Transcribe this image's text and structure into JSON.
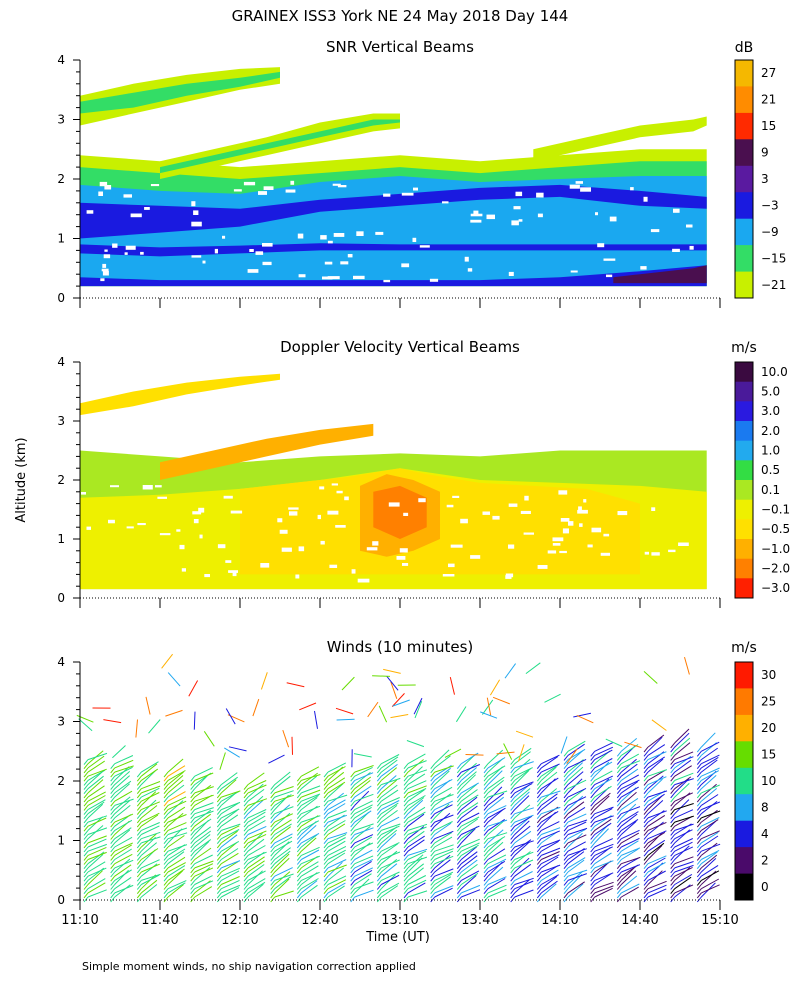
{
  "title": "GRAINEX ISS3 York NE  24 May 2018 Day 144",
  "ylabel_shared": "Altitude (km)",
  "xlabel": "Time (UT)",
  "footer": "Simple moment winds, no ship navigation correction applied",
  "x_ticks": [
    "11:10",
    "11:40",
    "12:10",
    "12:40",
    "13:10",
    "13:40",
    "14:10",
    "14:40",
    "15:10"
  ],
  "x_range_minutes": [
    670,
    910
  ],
  "chart_data": [
    {
      "type": "heatmap",
      "title": "SNR Vertical Beams",
      "ylim": [
        0,
        4
      ],
      "yticks": [
        "0",
        "1",
        "2",
        "3",
        "4"
      ],
      "colorbar_unit": "dB",
      "colorbar_labels": [
        "27",
        "21",
        "15",
        "9",
        "3",
        "−3",
        "−9",
        "−15",
        "−21"
      ],
      "colorbar_colors": [
        "#f5b800",
        "#ff8c00",
        "#ff2a00",
        "#4a0f4f",
        "#5a1aa0",
        "#1a1ae0",
        "#1aa8f0",
        "#33dd66",
        "#c8f000"
      ],
      "bands": [
        {
          "t": [
            670,
            700,
            730,
            760,
            790,
            820,
            850,
            880,
            905
          ],
          "lo": [
            0.2,
            0.2,
            0.2,
            0.2,
            0.2,
            0.2,
            0.2,
            0.2,
            0.2
          ],
          "hi": [
            2.4,
            2.3,
            2.2,
            2.3,
            2.4,
            2.3,
            2.4,
            2.5,
            2.5
          ],
          "color": "#c8f000"
        },
        {
          "t": [
            670,
            700,
            730,
            760,
            790,
            820,
            850,
            880,
            905
          ],
          "lo": [
            0.2,
            0.2,
            0.2,
            0.2,
            0.2,
            0.2,
            0.2,
            0.2,
            0.2
          ],
          "hi": [
            2.2,
            2.1,
            2.0,
            2.1,
            2.2,
            2.1,
            2.2,
            2.3,
            2.3
          ],
          "color": "#33dd66"
        },
        {
          "t": [
            670,
            700,
            730,
            760,
            790,
            820,
            850,
            880,
            905
          ],
          "lo": [
            0.2,
            0.2,
            0.2,
            0.2,
            0.2,
            0.2,
            0.2,
            0.2,
            0.2
          ],
          "hi": [
            1.9,
            1.8,
            1.75,
            1.95,
            2.05,
            1.95,
            2.0,
            2.05,
            2.05
          ],
          "color": "#1aa8f0"
        },
        {
          "t": [
            670,
            700,
            730,
            760,
            790,
            820,
            850,
            880,
            905
          ],
          "lo": [
            1.0,
            1.1,
            1.2,
            1.45,
            1.55,
            1.65,
            1.7,
            1.55,
            1.5
          ],
          "hi": [
            1.6,
            1.55,
            1.5,
            1.65,
            1.75,
            1.85,
            1.9,
            1.8,
            1.7
          ],
          "color": "#1a1ae0"
        },
        {
          "t": [
            670,
            700,
            730,
            760,
            790,
            820,
            850,
            880,
            905
          ],
          "lo": [
            0.75,
            0.7,
            0.75,
            0.8,
            0.8,
            0.8,
            0.8,
            0.8,
            0.8
          ],
          "hi": [
            0.9,
            0.85,
            0.88,
            0.92,
            0.9,
            0.9,
            0.9,
            0.9,
            0.9
          ],
          "color": "#1a1ae0"
        },
        {
          "t": [
            670,
            700,
            730,
            760,
            790,
            820,
            850,
            880,
            905
          ],
          "lo": [
            0.2,
            0.2,
            0.2,
            0.2,
            0.2,
            0.2,
            0.2,
            0.2,
            0.2
          ],
          "hi": [
            0.35,
            0.3,
            0.3,
            0.3,
            0.3,
            0.3,
            0.35,
            0.45,
            0.55
          ],
          "color": "#1a1ae0"
        },
        {
          "t": [
            870,
            880,
            890,
            900,
            905
          ],
          "lo": [
            0.25,
            0.25,
            0.25,
            0.25,
            0.25
          ],
          "hi": [
            0.35,
            0.4,
            0.45,
            0.5,
            0.55
          ],
          "color": "#4a0f4f"
        },
        {
          "t": [
            670,
            690,
            710,
            730,
            745
          ],
          "lo": [
            2.9,
            3.1,
            3.3,
            3.5,
            3.6
          ],
          "hi": [
            3.4,
            3.6,
            3.75,
            3.85,
            3.88
          ],
          "color": "#c8f000"
        },
        {
          "t": [
            670,
            690,
            710,
            730,
            745
          ],
          "lo": [
            3.1,
            3.2,
            3.4,
            3.55,
            3.7
          ],
          "hi": [
            3.3,
            3.45,
            3.6,
            3.7,
            3.8
          ],
          "color": "#33dd66"
        },
        {
          "t": [
            700,
            720,
            740,
            760,
            780,
            790
          ],
          "lo": [
            2.0,
            2.2,
            2.4,
            2.6,
            2.8,
            2.85
          ],
          "hi": [
            2.3,
            2.5,
            2.7,
            2.95,
            3.1,
            3.1
          ],
          "color": "#c8f000"
        },
        {
          "t": [
            700,
            720,
            740,
            760,
            780,
            790
          ],
          "lo": [
            2.1,
            2.3,
            2.5,
            2.7,
            2.9,
            2.95
          ],
          "hi": [
            2.2,
            2.4,
            2.6,
            2.8,
            3.0,
            3.0
          ],
          "color": "#33dd66"
        },
        {
          "t": [
            840,
            860,
            880,
            900,
            905
          ],
          "lo": [
            2.3,
            2.5,
            2.7,
            2.8,
            2.9
          ],
          "hi": [
            2.5,
            2.7,
            2.9,
            3.0,
            3.05
          ],
          "color": "#c8f000"
        }
      ]
    },
    {
      "type": "heatmap",
      "title": "Doppler Velocity Vertical Beams",
      "ylim": [
        0,
        4
      ],
      "yticks": [
        "0",
        "1",
        "2",
        "3",
        "4"
      ],
      "colorbar_unit": "m/s",
      "colorbar_labels": [
        "10.0",
        "5.0",
        "3.0",
        "2.0",
        "1.0",
        "0.5",
        "0.1",
        "−0.1",
        "−0.5",
        "−1.0",
        "−2.0",
        "−3.0"
      ],
      "colorbar_colors": [
        "#3a0a40",
        "#4a1a9a",
        "#2a1ae0",
        "#1a7af0",
        "#22aaee",
        "#33dd44",
        "#aae822",
        "#eef000",
        "#ffe000",
        "#ffb000",
        "#ff8000",
        "#ff2000"
      ],
      "bands": [
        {
          "t": [
            670,
            700,
            730,
            760,
            790,
            820,
            850,
            880,
            905
          ],
          "lo": [
            0.15,
            0.15,
            0.15,
            0.15,
            0.15,
            0.15,
            0.15,
            0.15,
            0.15
          ],
          "hi": [
            2.5,
            2.4,
            2.3,
            2.4,
            2.45,
            2.4,
            2.5,
            2.5,
            2.5
          ],
          "color": "#aae822"
        },
        {
          "t": [
            670,
            700,
            730,
            760,
            790,
            820,
            850,
            880,
            905
          ],
          "lo": [
            0.15,
            0.15,
            0.15,
            0.15,
            0.15,
            0.15,
            0.15,
            0.15,
            0.15
          ],
          "hi": [
            1.7,
            1.75,
            1.85,
            2.0,
            2.2,
            2.0,
            1.95,
            1.9,
            1.8
          ],
          "color": "#eef000"
        },
        {
          "t": [
            730,
            750,
            770,
            790,
            800,
            820,
            840,
            860,
            880
          ],
          "lo": [
            0.4,
            0.4,
            0.4,
            0.4,
            0.4,
            0.4,
            0.4,
            0.4,
            0.4
          ],
          "hi": [
            1.85,
            1.95,
            2.05,
            2.2,
            2.1,
            1.95,
            1.9,
            1.85,
            1.6
          ],
          "color": "#ffe000"
        },
        {
          "t": [
            775,
            785,
            795,
            805
          ],
          "lo": [
            0.8,
            0.7,
            0.8,
            1.0
          ],
          "hi": [
            1.9,
            2.1,
            2.0,
            1.8
          ],
          "color": "#ffb000"
        },
        {
          "t": [
            780,
            790,
            800
          ],
          "lo": [
            1.2,
            1.0,
            1.2
          ],
          "hi": [
            1.8,
            1.9,
            1.7
          ],
          "color": "#ff8000"
        },
        {
          "t": [
            670,
            690,
            710,
            730,
            745
          ],
          "lo": [
            3.1,
            3.25,
            3.45,
            3.6,
            3.7
          ],
          "hi": [
            3.3,
            3.5,
            3.65,
            3.75,
            3.8
          ],
          "color": "#ffe000"
        },
        {
          "t": [
            700,
            720,
            740,
            760,
            780
          ],
          "lo": [
            2.0,
            2.2,
            2.4,
            2.6,
            2.75
          ],
          "hi": [
            2.3,
            2.5,
            2.7,
            2.85,
            2.95
          ],
          "color": "#ffb000"
        }
      ]
    },
    {
      "type": "barbs",
      "title": "Winds (10 minutes)",
      "ylim": [
        0,
        4
      ],
      "yticks": [
        "0",
        "1",
        "2",
        "3",
        "4"
      ],
      "colorbar_unit": "m/s",
      "colorbar_labels": [
        "30",
        "25",
        "20",
        "15",
        "10",
        "8",
        "4",
        "2",
        "0"
      ],
      "colorbar_colors": [
        "#ff1a00",
        "#ff7a00",
        "#ffb000",
        "#66dd00",
        "#22dd88",
        "#22a8f0",
        "#1a1ae0",
        "#4a0a6a",
        "#000000"
      ],
      "profile_times": [
        670,
        680,
        690,
        700,
        710,
        720,
        730,
        740,
        750,
        760,
        770,
        780,
        790,
        800,
        810,
        820,
        830,
        840,
        850,
        860,
        870,
        880,
        890,
        900
      ],
      "profile_tops": [
        2.4,
        2.3,
        2.2,
        2.2,
        2.1,
        2.0,
        2.0,
        2.0,
        2.1,
        2.2,
        2.2,
        2.3,
        2.3,
        2.3,
        2.3,
        2.3,
        2.4,
        2.3,
        2.5,
        2.5,
        2.5,
        2.6,
        2.7,
        2.6
      ],
      "profile_speeds": [
        14,
        14,
        15,
        15,
        14,
        13,
        13,
        13,
        12,
        12,
        11,
        11,
        10,
        10,
        9,
        9,
        8,
        7,
        6,
        6,
        6,
        5,
        5,
        5
      ]
    }
  ]
}
